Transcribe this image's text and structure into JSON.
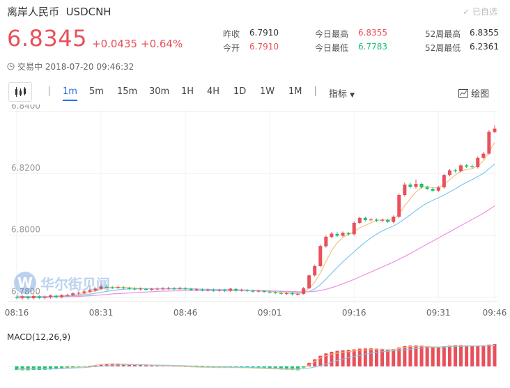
{
  "header": {
    "name": "离岸人民币",
    "symbol": "USDCNH",
    "selected_label": "已自选",
    "price": "6.8345",
    "change": "+0.0435",
    "change_pct": "+0.64%",
    "status": "交易中 2018-07-20 09:46:32"
  },
  "stats": {
    "prev_close_label": "昨收",
    "prev_close": "6.7910",
    "open_label": "今开",
    "open": "6.7910",
    "high_label": "今日最高",
    "high": "6.8355",
    "low_label": "今日最低",
    "low": "6.7783",
    "wk52_high_label": "52周最高",
    "wk52_high": "6.8355",
    "wk52_low_label": "52周最低",
    "wk52_low": "6.2361"
  },
  "toolbar": {
    "intervals": [
      "1m",
      "5m",
      "15m",
      "30m",
      "1H",
      "4H",
      "1D",
      "1W",
      "1M"
    ],
    "active": "1m",
    "indicator_label": "指标",
    "draw_label": "绘图"
  },
  "watermark": "华尔街见闻",
  "colors": {
    "up": "#e8505b",
    "down": "#1dbf73",
    "ma1": "#f3c37c",
    "ma2": "#7ec8f0",
    "ma3": "#ef8fe8",
    "accent": "#2670e8"
  },
  "chart_data": {
    "type": "candlestick",
    "y_ticks": [
      "6.8400",
      "6.8200",
      "6.8000",
      "6.7800"
    ],
    "ylim": [
      6.7785,
      6.8405
    ],
    "x_ticks": [
      "08:16",
      "08:31",
      "08:46",
      "09:01",
      "09:16",
      "09:31",
      "09:46"
    ],
    "macd_label": "MACD(12,26,9)",
    "grid": true,
    "candles": [
      [
        6.78,
        6.7798,
        6.7805,
        6.7793
      ],
      [
        6.7797,
        6.7802,
        6.7806,
        6.7792
      ],
      [
        6.7801,
        6.7796,
        6.7804,
        6.7791
      ],
      [
        6.7796,
        6.7803,
        6.7807,
        6.7792
      ],
      [
        6.7802,
        6.7797,
        6.7806,
        6.7793
      ],
      [
        6.7797,
        6.7801,
        6.7805,
        6.7792
      ],
      [
        6.78,
        6.7805,
        6.7808,
        6.7795
      ],
      [
        6.7804,
        6.7799,
        6.7807,
        6.7795
      ],
      [
        6.7799,
        6.7806,
        6.7809,
        6.7796
      ],
      [
        6.7805,
        6.7807,
        6.781,
        6.78
      ],
      [
        6.7806,
        6.7812,
        6.7815,
        6.7803
      ],
      [
        6.7811,
        6.7814,
        6.7818,
        6.7806
      ],
      [
        6.7813,
        6.7818,
        6.7822,
        6.7809
      ],
      [
        6.7817,
        6.7822,
        6.7826,
        6.7813
      ],
      [
        6.7821,
        6.7827,
        6.783,
        6.7817
      ],
      [
        6.7826,
        6.7834,
        6.784,
        6.7822
      ],
      [
        6.7833,
        6.7832,
        6.7842,
        6.7827
      ],
      [
        6.7831,
        6.783,
        6.7836,
        6.7826
      ],
      [
        6.783,
        6.7832,
        6.7837,
        6.7826
      ],
      [
        6.7831,
        6.7829,
        6.7835,
        6.7825
      ],
      [
        6.7829,
        6.7827,
        6.7833,
        6.7823
      ],
      [
        6.7827,
        6.7825,
        6.7831,
        6.7821
      ],
      [
        6.7825,
        6.7827,
        6.7831,
        6.7821
      ],
      [
        6.7826,
        6.7824,
        6.783,
        6.782
      ],
      [
        6.7824,
        6.7826,
        6.783,
        6.782
      ],
      [
        6.7825,
        6.7827,
        6.7831,
        6.7821
      ],
      [
        6.7826,
        6.7828,
        6.7832,
        6.7822
      ],
      [
        6.7827,
        6.7829,
        6.7833,
        6.7823
      ],
      [
        6.7828,
        6.7827,
        6.7832,
        6.7822
      ],
      [
        6.7827,
        6.7829,
        6.7833,
        6.7823
      ],
      [
        6.7828,
        6.7826,
        6.7832,
        6.7821
      ],
      [
        6.7826,
        6.7823,
        6.783,
        6.7819
      ],
      [
        6.7823,
        6.7825,
        6.7829,
        6.7819
      ],
      [
        6.7824,
        6.7822,
        6.7828,
        6.7818
      ],
      [
        6.7822,
        6.7824,
        6.7828,
        6.7818
      ],
      [
        6.7823,
        6.7821,
        6.7827,
        6.7817
      ],
      [
        6.7821,
        6.7823,
        6.7827,
        6.7817
      ],
      [
        6.7822,
        6.782,
        6.7826,
        6.7816
      ],
      [
        6.782,
        6.7827,
        6.783,
        6.7816
      ],
      [
        6.7826,
        6.7821,
        6.783,
        6.7817
      ],
      [
        6.7821,
        6.7823,
        6.7827,
        6.7817
      ],
      [
        6.7822,
        6.782,
        6.7826,
        6.7816
      ],
      [
        6.782,
        6.7818,
        6.7824,
        6.7814
      ],
      [
        6.7818,
        6.782,
        6.7824,
        6.7814
      ],
      [
        6.7819,
        6.7817,
        6.7823,
        6.7813
      ],
      [
        6.7817,
        6.7815,
        6.7821,
        6.7811
      ],
      [
        6.7815,
        6.7813,
        6.7819,
        6.7809
      ],
      [
        6.7813,
        6.7811,
        6.7817,
        6.7807
      ],
      [
        6.7811,
        6.7812,
        6.7816,
        6.7807
      ],
      [
        6.7812,
        6.7809,
        6.7815,
        6.7805
      ],
      [
        6.7809,
        6.781,
        6.7814,
        6.7805
      ],
      [
        6.781,
        6.7828,
        6.7832,
        6.7808
      ],
      [
        6.7828,
        6.787,
        6.7874,
        6.7826
      ],
      [
        6.787,
        6.79,
        6.7905,
        6.7866
      ],
      [
        6.79,
        6.7965,
        6.797,
        6.7896
      ],
      [
        6.7964,
        6.7995,
        6.7999,
        6.796
      ],
      [
        6.7994,
        6.8005,
        6.801,
        6.799
      ],
      [
        6.8004,
        6.7998,
        6.801,
        6.7994
      ],
      [
        6.7998,
        6.8008,
        6.8012,
        6.7994
      ],
      [
        6.8007,
        6.8003,
        6.8011,
        6.7999
      ],
      [
        6.8003,
        6.804,
        6.8045,
        6.7999
      ],
      [
        6.804,
        6.8056,
        6.806,
        6.8036
      ],
      [
        6.8056,
        6.8049,
        6.806,
        6.8045
      ],
      [
        6.8049,
        6.8051,
        6.8055,
        6.8045
      ],
      [
        6.805,
        6.8047,
        6.8054,
        6.8043
      ],
      [
        6.8047,
        6.805,
        6.8054,
        6.8043
      ],
      [
        6.805,
        6.8043,
        6.8053,
        6.804
      ],
      [
        6.8043,
        6.806,
        6.8064,
        6.8039
      ],
      [
        6.806,
        6.813,
        6.8135,
        6.8055
      ],
      [
        6.813,
        6.8164,
        6.817,
        6.8125
      ],
      [
        6.8164,
        6.8157,
        6.817,
        6.8152
      ],
      [
        6.8157,
        6.8166,
        6.818,
        6.815
      ],
      [
        6.8166,
        6.8155,
        6.817,
        6.815
      ],
      [
        6.8155,
        6.815,
        6.816,
        6.8146
      ],
      [
        6.815,
        6.8144,
        6.8155,
        6.814
      ],
      [
        6.8144,
        6.8155,
        6.816,
        6.814
      ],
      [
        6.8155,
        6.8195,
        6.8198,
        6.815
      ],
      [
        6.8195,
        6.821,
        6.8214,
        6.819
      ],
      [
        6.821,
        6.8207,
        6.8214,
        6.8203
      ],
      [
        6.8207,
        6.8226,
        6.823,
        6.8203
      ],
      [
        6.8226,
        6.8222,
        6.823,
        6.8218
      ],
      [
        6.8223,
        6.822,
        6.8228,
        6.8216
      ],
      [
        6.822,
        6.825,
        6.8255,
        6.8216
      ],
      [
        6.825,
        6.8264,
        6.827,
        6.8246
      ],
      [
        6.8264,
        6.8335,
        6.834,
        6.826
      ],
      [
        6.8334,
        6.8345,
        6.8355,
        6.833
      ]
    ],
    "ma_series": [
      {
        "values": [
          6.7802,
          6.78,
          6.78,
          6.78,
          6.7801,
          6.7801,
          6.7802,
          6.7803,
          6.7804,
          6.7805,
          6.7806,
          6.7808,
          6.7811,
          6.7815,
          6.782,
          6.7826,
          6.783,
          6.7831,
          6.7831,
          6.7831,
          6.783,
          6.7829,
          6.7828,
          6.7827,
          6.7826,
          6.7826,
          6.7826,
          6.7827,
          6.7828,
          6.7828,
          6.7828,
          6.7827,
          6.7826,
          6.7825,
          6.7824,
          6.7823,
          6.7823,
          6.7822,
          6.7823,
          6.7823,
          6.7823,
          6.7822,
          6.7821,
          6.782,
          6.7819,
          6.7818,
          6.7816,
          6.7814,
          6.7813,
          6.7812,
          6.7811,
          6.7815,
          6.7828,
          6.7848,
          6.7878,
          6.7915,
          6.795,
          6.7975,
          6.7993,
          6.8002,
          6.8012,
          6.8024,
          6.8032,
          6.804,
          6.8048,
          6.805,
          6.8048,
          6.8052,
          6.8068,
          6.8095,
          6.8118,
          6.814,
          6.8155,
          6.8158,
          6.8154,
          6.8153,
          6.8163,
          6.818,
          6.8195,
          6.8207,
          6.8213,
          6.8215,
          6.8225,
          6.824,
          6.827,
          6.83
        ]
      },
      {
        "values": [
          6.7803,
          6.7802,
          6.7801,
          6.7801,
          6.7801,
          6.7801,
          6.7801,
          6.7802,
          6.7802,
          6.7803,
          6.7804,
          6.7805,
          6.7807,
          6.7809,
          6.7812,
          6.7815,
          6.7818,
          6.7821,
          6.7823,
          6.7825,
          6.7826,
          6.7826,
          6.7827,
          6.7827,
          6.7827,
          6.7826,
          6.7826,
          6.7826,
          6.7826,
          6.7826,
          6.7826,
          6.7826,
          6.7826,
          6.7825,
          6.7825,
          6.7824,
          6.7824,
          6.7824,
          6.7823,
          6.7823,
          6.7823,
          6.7822,
          6.7822,
          6.7821,
          6.7821,
          6.782,
          6.7819,
          6.7818,
          6.7817,
          6.7816,
          6.7815,
          6.7815,
          6.7818,
          6.7826,
          6.784,
          6.7858,
          6.7877,
          6.7896,
          6.7914,
          6.793,
          6.7946,
          6.7963,
          6.7978,
          6.7991,
          6.8003,
          6.8014,
          6.8022,
          6.803,
          6.804,
          6.8053,
          6.8066,
          6.808,
          6.8093,
          6.8104,
          6.8113,
          6.8121,
          6.813,
          6.814,
          6.815,
          6.8161,
          6.8171,
          6.818,
          6.819,
          6.82,
          6.8215,
          6.823
        ]
      },
      {
        "values": [
          6.7797,
          6.7797,
          6.7798,
          6.7798,
          6.7798,
          6.7799,
          6.7799,
          6.78,
          6.78,
          6.7801,
          6.7801,
          6.7802,
          6.7803,
          6.7804,
          6.7805,
          6.7807,
          6.7808,
          6.781,
          6.7811,
          6.7812,
          6.7813,
          6.7814,
          6.7815,
          6.7816,
          6.7817,
          6.7818,
          6.7819,
          6.7819,
          6.782,
          6.782,
          6.7821,
          6.7821,
          6.7821,
          6.7821,
          6.7821,
          6.7821,
          6.7821,
          6.7821,
          6.7821,
          6.7821,
          6.7821,
          6.7821,
          6.7821,
          6.782,
          6.782,
          6.782,
          6.7819,
          6.7819,
          6.7818,
          6.7818,
          6.7817,
          6.7817,
          6.7817,
          6.7818,
          6.7821,
          6.7825,
          6.783,
          6.7836,
          6.7843,
          6.785,
          6.7857,
          6.7865,
          6.7873,
          6.7881,
          6.7889,
          6.7897,
          6.7905,
          6.7913,
          6.7922,
          6.7931,
          6.7941,
          6.7951,
          6.7961,
          6.7971,
          6.7981,
          6.7991,
          6.8001,
          6.8011,
          6.8021,
          6.8031,
          6.8041,
          6.8051,
          6.8061,
          6.8071,
          6.8083,
          6.8095
        ]
      }
    ],
    "macd_hist": [
      -0.15,
      -0.16,
      -0.16,
      -0.15,
      -0.15,
      -0.14,
      -0.13,
      -0.12,
      -0.11,
      -0.09,
      -0.07,
      -0.05,
      -0.03,
      0.0,
      0.04,
      0.08,
      0.11,
      0.12,
      0.12,
      0.11,
      0.1,
      0.09,
      0.08,
      0.07,
      0.06,
      0.05,
      0.04,
      0.03,
      0.02,
      0.01,
      0.0,
      -0.02,
      -0.03,
      -0.04,
      -0.05,
      -0.05,
      -0.06,
      -0.06,
      -0.05,
      -0.06,
      -0.06,
      -0.07,
      -0.08,
      -0.09,
      -0.1,
      -0.11,
      -0.12,
      -0.13,
      -0.14,
      -0.15,
      -0.16,
      -0.05,
      0.15,
      0.3,
      0.45,
      0.55,
      0.62,
      0.66,
      0.68,
      0.7,
      0.72,
      0.75,
      0.76,
      0.76,
      0.75,
      0.74,
      0.72,
      0.73,
      0.8,
      0.86,
      0.88,
      0.89,
      0.88,
      0.86,
      0.83,
      0.82,
      0.85,
      0.88,
      0.9,
      0.9,
      0.89,
      0.88,
      0.88,
      0.89,
      0.92,
      0.94
    ],
    "macd_dif": [
      -0.12,
      -0.12,
      -0.11,
      -0.11,
      -0.1,
      -0.1,
      -0.09,
      -0.08,
      -0.07,
      -0.06,
      -0.05,
      -0.03,
      -0.01,
      0.02,
      0.05,
      0.08,
      0.1,
      0.11,
      0.11,
      0.1,
      0.09,
      0.08,
      0.07,
      0.06,
      0.05,
      0.04,
      0.03,
      0.02,
      0.01,
      0.0,
      -0.01,
      -0.02,
      -0.03,
      -0.04,
      -0.04,
      -0.05,
      -0.05,
      -0.05,
      -0.05,
      -0.05,
      -0.06,
      -0.06,
      -0.07,
      -0.08,
      -0.09,
      -0.1,
      -0.1,
      -0.11,
      -0.12,
      -0.12,
      -0.13,
      -0.08,
      0.05,
      0.2,
      0.35,
      0.45,
      0.52,
      0.56,
      0.6,
      0.62,
      0.65,
      0.68,
      0.7,
      0.71,
      0.71,
      0.71,
      0.7,
      0.71,
      0.75,
      0.8,
      0.83,
      0.85,
      0.85,
      0.84,
      0.83,
      0.82,
      0.83,
      0.85,
      0.86,
      0.87,
      0.87,
      0.87,
      0.87,
      0.87,
      0.88,
      0.9
    ],
    "macd_dea": [
      -0.1,
      -0.1,
      -0.1,
      -0.1,
      -0.1,
      -0.1,
      -0.09,
      -0.09,
      -0.08,
      -0.08,
      -0.07,
      -0.06,
      -0.05,
      -0.03,
      -0.01,
      0.01,
      0.03,
      0.05,
      0.06,
      0.07,
      0.07,
      0.07,
      0.07,
      0.07,
      0.06,
      0.06,
      0.05,
      0.05,
      0.04,
      0.04,
      0.03,
      0.02,
      0.02,
      0.01,
      0.0,
      -0.01,
      -0.02,
      -0.02,
      -0.03,
      -0.03,
      -0.04,
      -0.04,
      -0.05,
      -0.05,
      -0.06,
      -0.07,
      -0.07,
      -0.08,
      -0.09,
      -0.09,
      -0.1,
      -0.1,
      -0.07,
      -0.03,
      0.03,
      0.1,
      0.18,
      0.25,
      0.31,
      0.37,
      0.42,
      0.47,
      0.52,
      0.56,
      0.59,
      0.62,
      0.64,
      0.66,
      0.68,
      0.7,
      0.73,
      0.75,
      0.77,
      0.79,
      0.8,
      0.81,
      0.82,
      0.83,
      0.84,
      0.85,
      0.85,
      0.86,
      0.86,
      0.86,
      0.87,
      0.87
    ]
  }
}
